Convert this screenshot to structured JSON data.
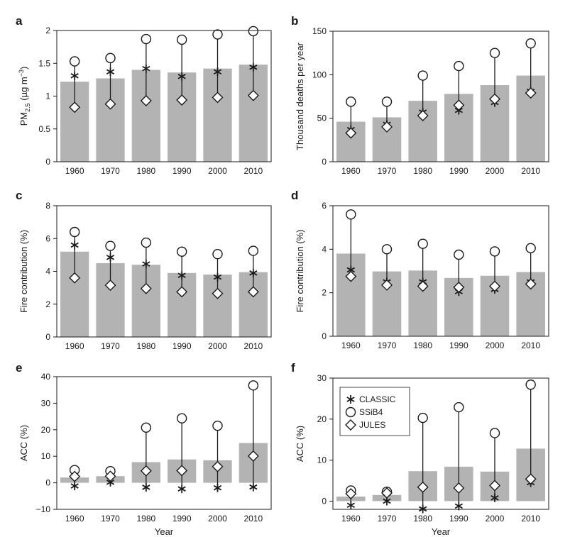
{
  "figure": {
    "x_axis_title": "Year",
    "legend": {
      "entries": [
        {
          "label": "CLASSIC",
          "marker": "asterisk"
        },
        {
          "label": "SSiB4",
          "marker": "circle"
        },
        {
          "label": "JULES",
          "marker": "diamond"
        }
      ]
    },
    "colors": {
      "bar": "#b3b3b3",
      "marker": "#1a1a1a",
      "axis": "#1a1a1a",
      "frame": "#1a1a1a"
    }
  },
  "chart_data": [
    {
      "panel": "a",
      "type": "bar",
      "categories": [
        "1960",
        "1970",
        "1980",
        "1990",
        "2000",
        "2010"
      ],
      "values": [
        1.22,
        1.27,
        1.4,
        1.36,
        1.42,
        1.48
      ],
      "model_values": {
        "CLASSIC": [
          1.31,
          1.37,
          1.42,
          1.3,
          1.37,
          1.44
        ],
        "SSiB4": [
          1.53,
          1.58,
          1.87,
          1.86,
          1.94,
          1.99
        ],
        "JULES": [
          0.83,
          0.88,
          0.93,
          0.94,
          0.98,
          1.01
        ]
      },
      "ylabel": "PM",
      "ylabel_sub": "2.5",
      "ylabel_unit": " (µg m",
      "ylabel_sup": "−3",
      "ylabel_end": ")",
      "ylim": [
        0,
        2
      ],
      "yticks": [
        0,
        0.5,
        1,
        1.5,
        2
      ],
      "ytick_labels": [
        "0",
        "0.5",
        "1",
        "1.5",
        "2"
      ],
      "xlabel": ""
    },
    {
      "panel": "b",
      "type": "bar",
      "categories": [
        "1960",
        "1970",
        "1980",
        "1990",
        "2000",
        "2010"
      ],
      "values": [
        46,
        51,
        70,
        78,
        88,
        99
      ],
      "model_values": {
        "CLASSIC": [
          37,
          43,
          57,
          59,
          68,
          81
        ],
        "SSiB4": [
          69,
          69,
          99,
          110,
          125,
          136
        ],
        "JULES": [
          33,
          40,
          53,
          65,
          72,
          79
        ]
      },
      "ylabel": "Thousand deaths per year",
      "ylim": [
        0,
        150
      ],
      "yticks": [
        0,
        50,
        100,
        150
      ],
      "ytick_labels": [
        "0",
        "50",
        "100",
        "150"
      ],
      "xlabel": ""
    },
    {
      "panel": "c",
      "type": "bar",
      "categories": [
        "1960",
        "1970",
        "1980",
        "1990",
        "2000",
        "2010"
      ],
      "values": [
        5.2,
        4.5,
        4.4,
        3.9,
        3.8,
        3.95
      ],
      "model_values": {
        "CLASSIC": [
          5.6,
          4.85,
          4.45,
          3.75,
          3.65,
          3.9
        ],
        "SSiB4": [
          6.4,
          5.55,
          5.75,
          5.2,
          5.05,
          5.25
        ],
        "JULES": [
          3.6,
          3.15,
          2.95,
          2.75,
          2.65,
          2.75
        ]
      },
      "ylabel": "Fire contribution (%)",
      "ylim": [
        0,
        8
      ],
      "yticks": [
        0,
        2,
        4,
        6,
        8
      ],
      "ytick_labels": [
        "0",
        "2",
        "4",
        "6",
        "8"
      ],
      "xlabel": ""
    },
    {
      "panel": "d",
      "type": "bar",
      "categories": [
        "1960",
        "1970",
        "1980",
        "1990",
        "2000",
        "2010"
      ],
      "values": [
        3.8,
        2.98,
        3.02,
        2.68,
        2.78,
        2.95
      ],
      "model_values": {
        "CLASSIC": [
          3.05,
          2.5,
          2.5,
          2.05,
          2.15,
          2.5
        ],
        "SSiB4": [
          5.6,
          4.0,
          4.25,
          3.75,
          3.9,
          4.05
        ],
        "JULES": [
          2.75,
          2.35,
          2.3,
          2.25,
          2.3,
          2.4
        ]
      },
      "ylabel": "Fire contribution (%)",
      "ylim": [
        0,
        6
      ],
      "yticks": [
        0,
        2,
        4,
        6
      ],
      "ytick_labels": [
        "0",
        "2",
        "4",
        "6"
      ],
      "xlabel": ""
    },
    {
      "panel": "e",
      "type": "bar",
      "categories": [
        "1960",
        "1970",
        "1980",
        "1990",
        "2000",
        "2010"
      ],
      "values": [
        2.0,
        2.5,
        7.8,
        8.8,
        8.5,
        15.0
      ],
      "model_values": {
        "CLASSIC": [
          -1.2,
          0.2,
          -1.7,
          -2.3,
          -1.9,
          -1.6
        ],
        "SSiB4": [
          4.8,
          4.4,
          20.8,
          24.3,
          21.5,
          36.7
        ],
        "JULES": [
          2.4,
          2.5,
          4.5,
          4.6,
          6.1,
          10.1
        ]
      },
      "ylabel": "ACC (%)",
      "ylim": [
        -10,
        40
      ],
      "yticks": [
        -10,
        0,
        10,
        20,
        30,
        40
      ],
      "ytick_labels": [
        "−10",
        "0",
        "10",
        "20",
        "30",
        "40"
      ],
      "xlabel": "Year"
    },
    {
      "panel": "f",
      "type": "bar",
      "categories": [
        "1960",
        "1970",
        "1980",
        "1990",
        "2000",
        "2010"
      ],
      "values": [
        1.1,
        1.5,
        7.3,
        8.4,
        7.2,
        12.8
      ],
      "model_values": {
        "CLASSIC": [
          -1.0,
          0.0,
          -1.9,
          -1.2,
          0.8,
          4.5
        ],
        "SSiB4": [
          2.6,
          2.3,
          20.3,
          22.9,
          16.6,
          28.4
        ],
        "JULES": [
          1.8,
          2.0,
          3.4,
          3.2,
          3.8,
          5.4
        ]
      },
      "ylabel": "ACC (%)",
      "ylim": [
        -2,
        30
      ],
      "yticks": [
        0,
        10,
        20,
        30
      ],
      "ytick_labels": [
        "0",
        "10",
        "20",
        "30"
      ],
      "xlabel": "Year"
    }
  ]
}
